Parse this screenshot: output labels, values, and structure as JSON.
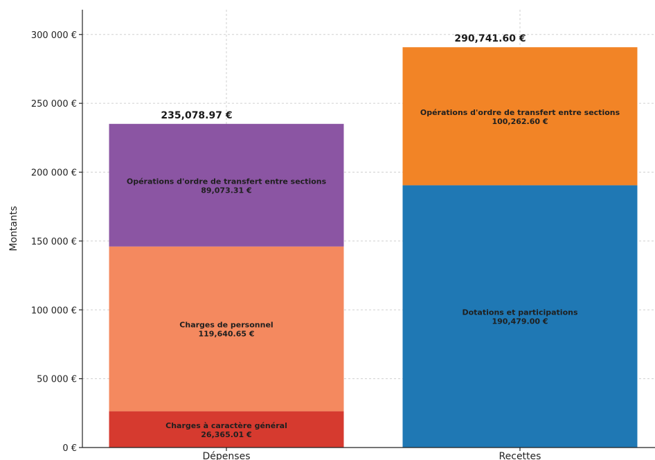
{
  "chart_data": {
    "type": "bar",
    "stacked": true,
    "categories": [
      "Dépenses",
      "Recettes"
    ],
    "ylabel": "Montants",
    "ylim": [
      0,
      318000
    ],
    "yticks": [
      0,
      50000,
      100000,
      150000,
      200000,
      250000,
      300000
    ],
    "ytick_labels": [
      "0 €",
      "50 000 €",
      "100 000 €",
      "150 000 €",
      "200 000 €",
      "250 000 €",
      "300 000 €"
    ],
    "grid": true,
    "stacks": [
      {
        "category": "Dépenses",
        "total_label": "235,078.97 €",
        "segments": [
          {
            "name": "Charges à caractère général",
            "value": 26365.01,
            "value_label": "26,365.01 €",
            "color": "#d63a2f"
          },
          {
            "name": "Charges de personnel",
            "value": 119640.65,
            "value_label": "119,640.65 €",
            "color": "#f4895f"
          },
          {
            "name": "Opérations d'ordre de transfert entre sections",
            "value": 89073.31,
            "value_label": "89,073.31 €",
            "color": "#8b55a3"
          }
        ]
      },
      {
        "category": "Recettes",
        "total_label": "290,741.60 €",
        "segments": [
          {
            "name": "Dotations et participations",
            "value": 190479.0,
            "value_label": "190,479.00 €",
            "color": "#1f78b4"
          },
          {
            "name": "Opérations d'ordre de transfert entre sections",
            "value": 100262.6,
            "value_label": "100,262.60 €",
            "color": "#f28426"
          }
        ]
      }
    ]
  }
}
